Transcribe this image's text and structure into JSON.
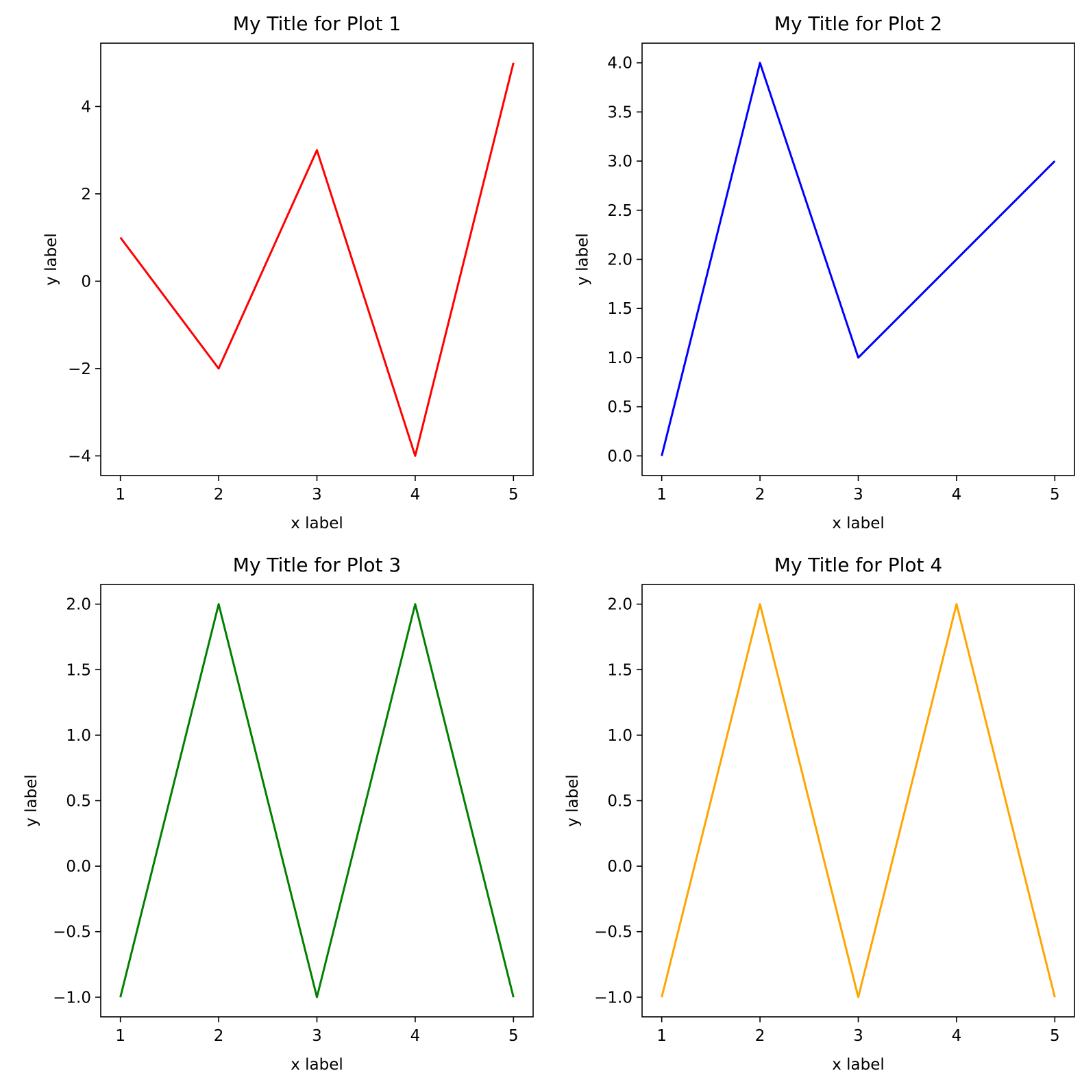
{
  "chart_data": [
    {
      "type": "line",
      "title": "My Title for Plot 1",
      "xlabel": "x label",
      "ylabel": "y label",
      "x": [
        1,
        2,
        3,
        4,
        5
      ],
      "series": [
        {
          "values": [
            1,
            -2,
            3,
            -4,
            5
          ],
          "color": "#ff0000"
        }
      ],
      "xlim": [
        0.8,
        5.2
      ],
      "ylim": [
        -4.45,
        5.45
      ],
      "xticks": [
        1,
        2,
        3,
        4,
        5
      ],
      "xtick_labels": [
        "1",
        "2",
        "3",
        "4",
        "5"
      ],
      "yticks": [
        -4,
        -2,
        0,
        2,
        4
      ],
      "ytick_labels": [
        "−4",
        "−2",
        "0",
        "2",
        "4"
      ],
      "grid": false
    },
    {
      "type": "line",
      "title": "My Title for Plot 2",
      "xlabel": "x label",
      "ylabel": "y label",
      "x": [
        1,
        2,
        3,
        4,
        5
      ],
      "series": [
        {
          "values": [
            0,
            4,
            1,
            2,
            3
          ],
          "color": "#0000ff"
        }
      ],
      "xlim": [
        0.8,
        5.2
      ],
      "ylim": [
        -0.2,
        4.2
      ],
      "xticks": [
        1,
        2,
        3,
        4,
        5
      ],
      "xtick_labels": [
        "1",
        "2",
        "3",
        "4",
        "5"
      ],
      "yticks": [
        0,
        0.5,
        1,
        1.5,
        2,
        2.5,
        3,
        3.5,
        4
      ],
      "ytick_labels": [
        "0.0",
        "0.5",
        "1.0",
        "1.5",
        "2.0",
        "2.5",
        "3.0",
        "3.5",
        "4.0"
      ],
      "grid": false
    },
    {
      "type": "line",
      "title": "My Title for Plot 3",
      "xlabel": "x label",
      "ylabel": "y label",
      "x": [
        1,
        2,
        3,
        4,
        5
      ],
      "series": [
        {
          "values": [
            -1,
            2,
            -1,
            2,
            -1
          ],
          "color": "#008000"
        }
      ],
      "xlim": [
        0.8,
        5.2
      ],
      "ylim": [
        -1.15,
        2.15
      ],
      "xticks": [
        1,
        2,
        3,
        4,
        5
      ],
      "xtick_labels": [
        "1",
        "2",
        "3",
        "4",
        "5"
      ],
      "yticks": [
        -1,
        -0.5,
        0,
        0.5,
        1,
        1.5,
        2
      ],
      "ytick_labels": [
        "−1.0",
        "−0.5",
        "0.0",
        "0.5",
        "1.0",
        "1.5",
        "2.0"
      ],
      "grid": false
    },
    {
      "type": "line",
      "title": "My Title for Plot 4",
      "xlabel": "x label",
      "ylabel": "y label",
      "x": [
        1,
        2,
        3,
        4,
        5
      ],
      "series": [
        {
          "values": [
            -1,
            2,
            -1,
            2,
            -1
          ],
          "color": "#ffa500"
        }
      ],
      "xlim": [
        0.8,
        5.2
      ],
      "ylim": [
        -1.15,
        2.15
      ],
      "xticks": [
        1,
        2,
        3,
        4,
        5
      ],
      "xtick_labels": [
        "1",
        "2",
        "3",
        "4",
        "5"
      ],
      "yticks": [
        -1,
        -0.5,
        0,
        0.5,
        1,
        1.5,
        2
      ],
      "ytick_labels": [
        "−1.0",
        "−0.5",
        "0.0",
        "0.5",
        "1.0",
        "1.5",
        "2.0"
      ],
      "grid": false
    }
  ]
}
